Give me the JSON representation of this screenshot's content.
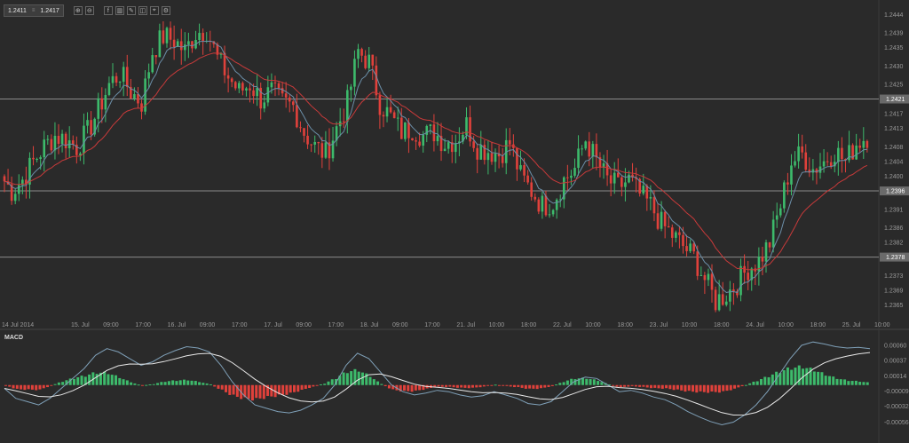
{
  "toolbar": {
    "bid": "1.2411",
    "ask": "1.2417",
    "separator": "≡",
    "buttons": [
      {
        "name": "zoom-in-icon",
        "glyph": "⊕"
      },
      {
        "name": "zoom-out-icon",
        "glyph": "⊖"
      },
      {
        "name": "indicator-icon",
        "glyph": "f"
      },
      {
        "name": "chart-type-icon",
        "glyph": "▥"
      },
      {
        "name": "drawing-icon",
        "glyph": "✎"
      },
      {
        "name": "period-icon",
        "glyph": "◫"
      },
      {
        "name": "crosshair-icon",
        "glyph": "⌖"
      },
      {
        "name": "settings-icon",
        "glyph": "⚙"
      }
    ]
  },
  "macd_label": "MACD",
  "colors": {
    "up": "#3dba6b",
    "down": "#e0413b",
    "fast_ma": "#6b8ea8",
    "slow_ma": "#c83a3a",
    "hline": "#8a8a8a",
    "grid": "#333333"
  },
  "chart_data": [
    {
      "type": "candlestick",
      "title": "",
      "price_ticks": [
        "1.2444",
        "1.2439",
        "1.2435",
        "1.2430",
        "1.2425",
        "1.2421",
        "1.2417",
        "1.2413",
        "1.2408",
        "1.2404",
        "1.2400",
        "1.2396",
        "1.2391",
        "1.2386",
        "1.2382",
        "1.2378",
        "1.2373",
        "1.2369",
        "1.2365"
      ],
      "ylim": [
        1.2361,
        1.2446
      ],
      "time_ticks": [
        "14 Jul 2014",
        "15. Jul",
        "09:00",
        "17:00",
        "16. Jul",
        "09:00",
        "17:00",
        "17. Jul",
        "09:00",
        "17:00",
        "18. Jul",
        "09:00",
        "17:00",
        "21. Jul",
        "10:00",
        "18:00",
        "22. Jul",
        "10:00",
        "18:00",
        "23. Jul",
        "10:00",
        "18:00",
        "24. Jul",
        "10:00",
        "18:00",
        "25. Jul",
        "10:00"
      ],
      "horizontal_lines": [
        {
          "value": "1.2421",
          "label": "1.2421"
        },
        {
          "value": "1.2396",
          "label": "1.2396"
        },
        {
          "value": "1.2378",
          "label": "1.2378"
        }
      ],
      "close_series": [
        1.24,
        1.2396,
        1.2399,
        1.2404,
        1.2408,
        1.2411,
        1.241,
        1.2408,
        1.2412,
        1.2418,
        1.2425,
        1.2428,
        1.2423,
        1.242,
        1.2434,
        1.2438,
        1.2437,
        1.2434,
        1.2439,
        1.244,
        1.2432,
        1.2427,
        1.2423,
        1.2425,
        1.2421,
        1.2423,
        1.242,
        1.2419,
        1.2412,
        1.2408,
        1.2406,
        1.2413,
        1.242,
        1.2434,
        1.2431,
        1.242,
        1.2416,
        1.2412,
        1.2413,
        1.2411,
        1.2412,
        1.2409,
        1.241,
        1.2414,
        1.2408,
        1.2407,
        1.2406,
        1.2409,
        1.24,
        1.2396,
        1.2392,
        1.2393,
        1.2399,
        1.2402,
        1.241,
        1.2404,
        1.2399,
        1.2397,
        1.2399,
        1.2395,
        1.2392,
        1.2387,
        1.2384,
        1.2381,
        1.2378,
        1.2372,
        1.2366,
        1.2368,
        1.2371,
        1.2375,
        1.2377,
        1.2382,
        1.2392,
        1.2404,
        1.2406,
        1.2402,
        1.2404,
        1.2407,
        1.2404,
        1.2409,
        1.2411
      ],
      "macd_ticks": [
        "0.00060",
        "0.00037",
        "0.00014",
        "-0.00009",
        "-0.00032",
        "-0.00056"
      ],
      "macd_ylim": [
        -0.00062,
        0.00068
      ],
      "macd_line": [
        -5e-05,
        -0.0002,
        -0.00025,
        -0.0003,
        -0.0002,
        -5e-05,
        0.0001,
        0.00025,
        0.00045,
        0.00055,
        0.0005,
        0.0004,
        0.0003,
        0.00035,
        0.00045,
        0.00052,
        0.00058,
        0.00056,
        0.0005,
        0.0003,
        5e-05,
        -0.00015,
        -0.0003,
        -0.00035,
        -0.0004,
        -0.00042,
        -0.00038,
        -0.0003,
        -0.0002,
        0.0,
        0.0003,
        0.00048,
        0.0004,
        0.0002,
        0.0,
        -0.0001,
        -0.00015,
        -0.00012,
        -8e-05,
        -0.0001,
        -0.00015,
        -0.00018,
        -0.00016,
        -0.0001,
        -0.00015,
        -0.0002,
        -0.00028,
        -0.0003,
        -0.00025,
        -0.0001,
        5e-05,
        0.00012,
        0.0001,
        0.0,
        -0.0001,
        -8e-05,
        -0.00012,
        -0.00018,
        -0.00022,
        -0.0003,
        -0.0004,
        -0.00048,
        -0.00055,
        -0.0006,
        -0.00056,
        -0.00045,
        -0.0003,
        -0.0001,
        0.00015,
        0.0004,
        0.0006,
        0.00065,
        0.00062,
        0.00058,
        0.00056,
        0.00057,
        0.00055
      ]
    }
  ]
}
